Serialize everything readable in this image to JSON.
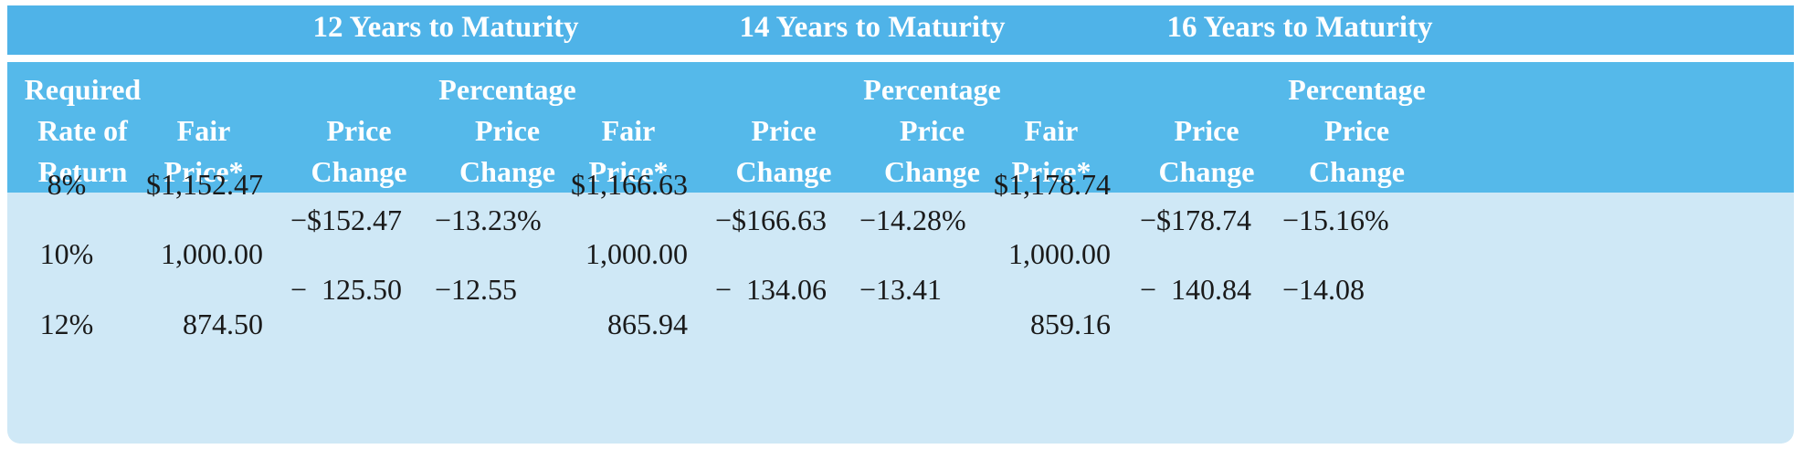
{
  "groups": [
    {
      "title": "12 Years to Maturity",
      "fair_price_head": "Fair\nPrice*",
      "price_change_head": "Price\nChange",
      "pct_change_head": "Percentage\nPrice\nChange",
      "fair_prices": [
        "$1,152.47",
        "1,000.00",
        "874.50"
      ],
      "price_changes": [
        "−$152.47",
        "−  125.50"
      ],
      "pct_changes": [
        "−13.23%",
        "−12.55"
      ]
    },
    {
      "title": "14 Years to Maturity",
      "fair_price_head": "Fair\nPrice*",
      "price_change_head": "Price\nChange",
      "pct_change_head": "Percentage\nPrice\nChange",
      "fair_prices": [
        "$1,166.63",
        "1,000.00",
        "865.94"
      ],
      "price_changes": [
        "−$166.63",
        "−  134.06"
      ],
      "pct_changes": [
        "−14.28%",
        "−13.41"
      ]
    },
    {
      "title": "16 Years to Maturity",
      "fair_price_head": "Fair\nPrice*",
      "price_change_head": "Price\nChange",
      "pct_change_head": "Percentage\nPrice\nChange",
      "fair_prices": [
        "$1,178.74",
        "1,000.00",
        "859.16"
      ],
      "price_changes": [
        "−$178.74",
        "−  140.84"
      ],
      "pct_changes": [
        "−15.16%",
        "−14.08"
      ]
    }
  ],
  "rate_head": "Required\nRate of\nReturn",
  "rates": [
    "8%",
    "10%",
    "12%"
  ],
  "colors": {
    "title_band": "#4fb3e8",
    "header_band": "#55b9ea",
    "body": "#cfe8f6",
    "header_text": "#ffffff",
    "body_text": "#1a1a1a"
  }
}
